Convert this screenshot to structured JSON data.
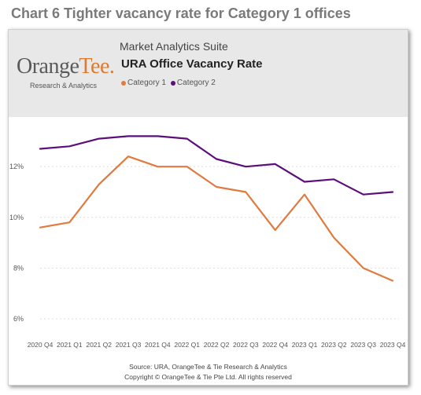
{
  "heading": "Chart 6 Tighter vacancy rate for Category 1 offices",
  "logo": {
    "main": "Orange",
    "accent": "Tee",
    "dot": ".",
    "sub": "Research & Analytics"
  },
  "header": {
    "suite": "Market Analytics Suite"
  },
  "footer": {
    "source": "Source: URA, OrangeTee & Tie Research & Analytics",
    "copyright": "Copyright © OrangeTee & Tie Pte Ltd. All rights reserved"
  },
  "chart_data": {
    "type": "line",
    "title": "URA Office Vacancy Rate",
    "categories": [
      "2020 Q4",
      "2021 Q1",
      "2021 Q2",
      "2021 Q3",
      "2021 Q4",
      "2022 Q1",
      "2022 Q2",
      "2022 Q3",
      "2022 Q4",
      "2023 Q1",
      "2023 Q2",
      "2023 Q3",
      "2023 Q4"
    ],
    "series": [
      {
        "name": "Category 1",
        "color": "#e07a3e",
        "values": [
          9.6,
          9.8,
          11.3,
          12.4,
          12.0,
          12.0,
          11.2,
          11.0,
          9.5,
          10.9,
          9.2,
          8.0,
          7.5
        ]
      },
      {
        "name": "Category 2",
        "color": "#5c0f7a",
        "values": [
          12.7,
          12.8,
          13.1,
          13.2,
          13.2,
          13.1,
          12.3,
          12.0,
          12.1,
          11.4,
          11.5,
          10.9,
          11.0
        ]
      }
    ],
    "ylim": [
      6,
      13.8
    ],
    "yticks": [
      6,
      8,
      10,
      12
    ],
    "ytick_labels": [
      "6%",
      "8%",
      "10%",
      "12%"
    ],
    "grid": true,
    "legend": "top-left"
  }
}
